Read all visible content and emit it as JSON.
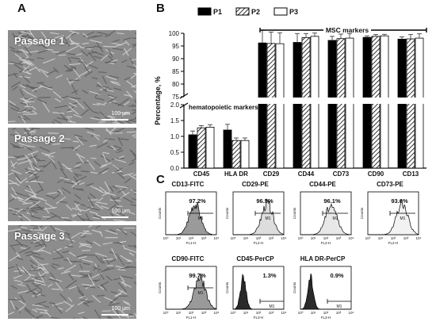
{
  "panels": {
    "a": "A",
    "b": "B",
    "c": "C"
  },
  "micrographs": [
    {
      "label": "Passage 1",
      "scale": "100 μm"
    },
    {
      "label": "Passage 2",
      "scale": "100 μm"
    },
    {
      "label": "Passage 3",
      "scale": "100 μm"
    }
  ],
  "chart_data": {
    "type": "bar",
    "ylabel": "Percentage, %",
    "y_axis_broken": true,
    "lower_ylim": [
      0,
      2
    ],
    "upper_ylim": [
      75,
      100
    ],
    "lower_ticks": [
      "0.0",
      "0.5",
      "1.0",
      "1.5",
      "2.0"
    ],
    "upper_ticks": [
      "75",
      "80",
      "85",
      "90",
      "95",
      "100"
    ],
    "categories": [
      "CD45",
      "HLA DR",
      "CD29",
      "CD44",
      "CD73",
      "CD90",
      "CD13"
    ],
    "series": [
      {
        "name": "P1",
        "fill": "#000000",
        "values": [
          1.05,
          1.2,
          96.2,
          96.4,
          97.2,
          98.4,
          97.7
        ],
        "errors": [
          0.12,
          0.18,
          5.0,
          3.5,
          1.6,
          0.6,
          0.9
        ]
      },
      {
        "name": "P2",
        "fill": "hatch",
        "values": [
          1.27,
          0.87,
          96.0,
          98.3,
          97.9,
          98.8,
          97.8
        ],
        "errors": [
          0.07,
          0.08,
          4.5,
          1.6,
          1.8,
          0.7,
          1.7
        ]
      },
      {
        "name": "P3",
        "fill": "#ffffff",
        "values": [
          1.29,
          0.87,
          95.9,
          98.8,
          98.1,
          99.0,
          98.1
        ],
        "errors": [
          0.08,
          0.08,
          4.3,
          1.3,
          1.8,
          0.6,
          1.7
        ]
      }
    ],
    "annotations": {
      "msc": "MSC markers",
      "hematopoietic": "hematopoietic markers"
    },
    "legend_placement": "top"
  },
  "flow": [
    {
      "title": "CD13-FITC",
      "percent": "97.2%",
      "marker": "M1",
      "xaxis": "FL1-H",
      "yaxis": "Counts",
      "color": "#9a9a9a",
      "peak": 0.45
    },
    {
      "title": "CD29-PE",
      "percent": "96.5%",
      "marker": "M1",
      "xaxis": "FL2-H",
      "yaxis": "Counts",
      "color": "#dddddd",
      "peak": 0.55
    },
    {
      "title": "CD44-PE",
      "percent": "96.1%",
      "marker": "M1",
      "xaxis": "FL2-H",
      "yaxis": "Counts",
      "color": "#e8e8e8",
      "peak": 0.48
    },
    {
      "title": "CD73-PE",
      "percent": "93.6%",
      "marker": "M1",
      "xaxis": "FL2-H",
      "yaxis": "Counts",
      "color": "#f2f2f2",
      "peak": 0.55
    },
    {
      "title": "CD90-FITC",
      "percent": "99.7%",
      "marker": "M1",
      "xaxis": "FL1-H",
      "yaxis": "Counts",
      "color": "#9a9a9a",
      "peak": 0.55
    },
    {
      "title": "CD45-PerCP",
      "percent": "1.3%",
      "marker": "M1",
      "xaxis": "FL3-H",
      "yaxis": "Counts",
      "color": "#2a2a2a",
      "peak": 0.2
    },
    {
      "title": "HLA DR-PerCP",
      "percent": "0.9%",
      "marker": "M1",
      "xaxis": "FL3-H",
      "yaxis": "Counts",
      "color": "#2a2a2a",
      "peak": 0.2
    }
  ],
  "flow_ticks": [
    "10⁰",
    "10¹",
    "10²",
    "10³",
    "10⁴"
  ]
}
